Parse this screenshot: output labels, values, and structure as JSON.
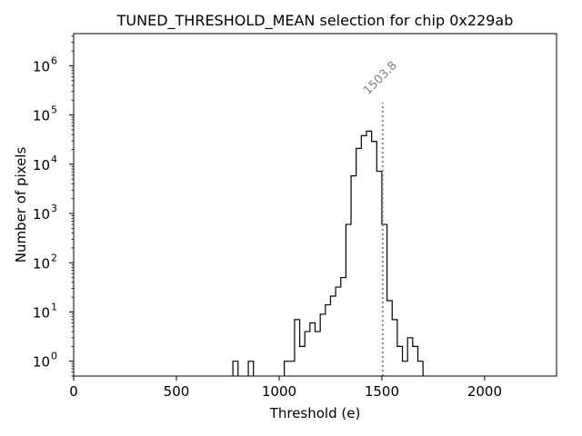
{
  "chart_data": {
    "type": "histogram",
    "title": "TUNED_THRESHOLD_MEAN selection for chip 0x229ab",
    "xlabel": "Threshold (e)",
    "ylabel": "Number of pixels",
    "xlim": [
      0,
      2350
    ],
    "ylim": [
      0.5,
      4500000
    ],
    "yscale": "log",
    "grid": false,
    "bin_width": 25,
    "x_ticks": [
      {
        "value": 0,
        "label": "0"
      },
      {
        "value": 500,
        "label": "500"
      },
      {
        "value": 1000,
        "label": "1000"
      },
      {
        "value": 1500,
        "label": "1500"
      },
      {
        "value": 2000,
        "label": "2000"
      }
    ],
    "y_ticks": [
      {
        "value": 1,
        "base": "10",
        "exp": "0"
      },
      {
        "value": 10,
        "base": "10",
        "exp": "1"
      },
      {
        "value": 100,
        "base": "10",
        "exp": "2"
      },
      {
        "value": 1000,
        "base": "10",
        "exp": "3"
      },
      {
        "value": 10000,
        "base": "10",
        "exp": "4"
      },
      {
        "value": 100000,
        "base": "10",
        "exp": "5"
      },
      {
        "value": 1000000,
        "base": "10",
        "exp": "6"
      }
    ],
    "bins": [
      {
        "x": 775,
        "count": 1
      },
      {
        "x": 800,
        "count": 0
      },
      {
        "x": 825,
        "count": 0
      },
      {
        "x": 850,
        "count": 1
      },
      {
        "x": 875,
        "count": 0
      },
      {
        "x": 900,
        "count": 0
      },
      {
        "x": 925,
        "count": 0
      },
      {
        "x": 950,
        "count": 0
      },
      {
        "x": 975,
        "count": 0
      },
      {
        "x": 1000,
        "count": 0
      },
      {
        "x": 1025,
        "count": 1
      },
      {
        "x": 1050,
        "count": 1
      },
      {
        "x": 1075,
        "count": 7
      },
      {
        "x": 1100,
        "count": 2
      },
      {
        "x": 1125,
        "count": 4
      },
      {
        "x": 1150,
        "count": 6
      },
      {
        "x": 1175,
        "count": 4
      },
      {
        "x": 1200,
        "count": 9
      },
      {
        "x": 1225,
        "count": 14
      },
      {
        "x": 1250,
        "count": 21
      },
      {
        "x": 1275,
        "count": 32
      },
      {
        "x": 1300,
        "count": 50
      },
      {
        "x": 1325,
        "count": 600
      },
      {
        "x": 1350,
        "count": 5800
      },
      {
        "x": 1375,
        "count": 21000
      },
      {
        "x": 1400,
        "count": 38000
      },
      {
        "x": 1425,
        "count": 47000
      },
      {
        "x": 1450,
        "count": 29000
      },
      {
        "x": 1475,
        "count": 7200
      },
      {
        "x": 1500,
        "count": 600
      },
      {
        "x": 1525,
        "count": 17
      },
      {
        "x": 1550,
        "count": 7
      },
      {
        "x": 1575,
        "count": 2
      },
      {
        "x": 1600,
        "count": 1
      },
      {
        "x": 1625,
        "count": 3
      },
      {
        "x": 1650,
        "count": 2
      },
      {
        "x": 1675,
        "count": 1
      }
    ],
    "annotation": {
      "x": 1503.8,
      "label": "1503.8",
      "y_top": 180000
    }
  }
}
